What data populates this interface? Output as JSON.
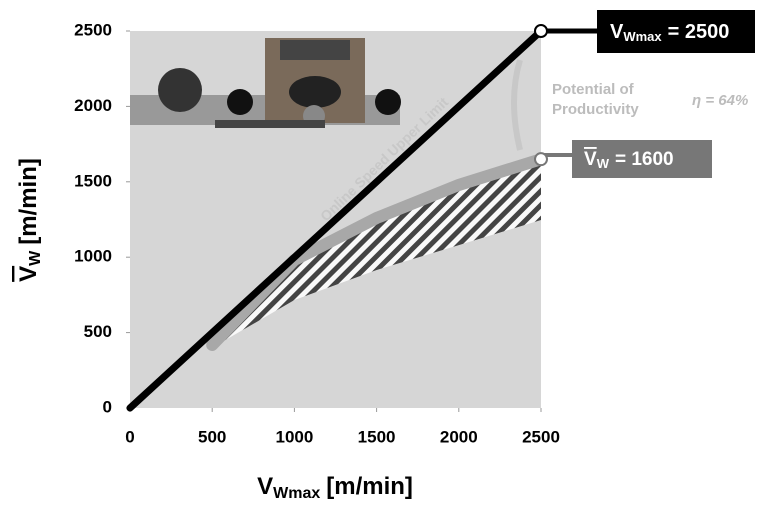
{
  "chart_data": {
    "type": "line",
    "y_label": {
      "main": "V",
      "sub": "W",
      "unit": "[m/min]"
    },
    "x_label": {
      "main": "V",
      "sub": "Wmax",
      "unit": "[m/min]"
    },
    "xlim": [
      0,
      2500
    ],
    "ylim": [
      0,
      2500
    ],
    "xticks": [
      0,
      500,
      1000,
      1500,
      2000,
      2500
    ],
    "yticks": [
      0,
      500,
      1000,
      1500,
      2000,
      2500
    ],
    "series": [
      {
        "color": "#000000",
        "x": [
          0,
          2500
        ],
        "values": [
          0,
          2500
        ]
      },
      {
        "color": "#a8a8a8",
        "x": [
          500,
          1000,
          1500,
          2000,
          2500
        ],
        "values": [
          418,
          981,
          1260,
          1479,
          1650
        ]
      },
      {
        "color": "#ffffff",
        "x": [
          500,
          1000,
          1500,
          2000,
          2500
        ],
        "values": [
          400,
          716,
          915,
          1080,
          1247
        ]
      }
    ],
    "callout_max": {
      "main": "V",
      "sub": "Wmax",
      "text": "= 2500"
    },
    "callout_mean": {
      "main": "V",
      "sub": "W",
      "text": "= 1600"
    },
    "annotations": {
      "potential": [
        "Potential of",
        "Productivity"
      ],
      "eta": "η = 64%",
      "limit": "Online Speed Upper Limit"
    }
  }
}
